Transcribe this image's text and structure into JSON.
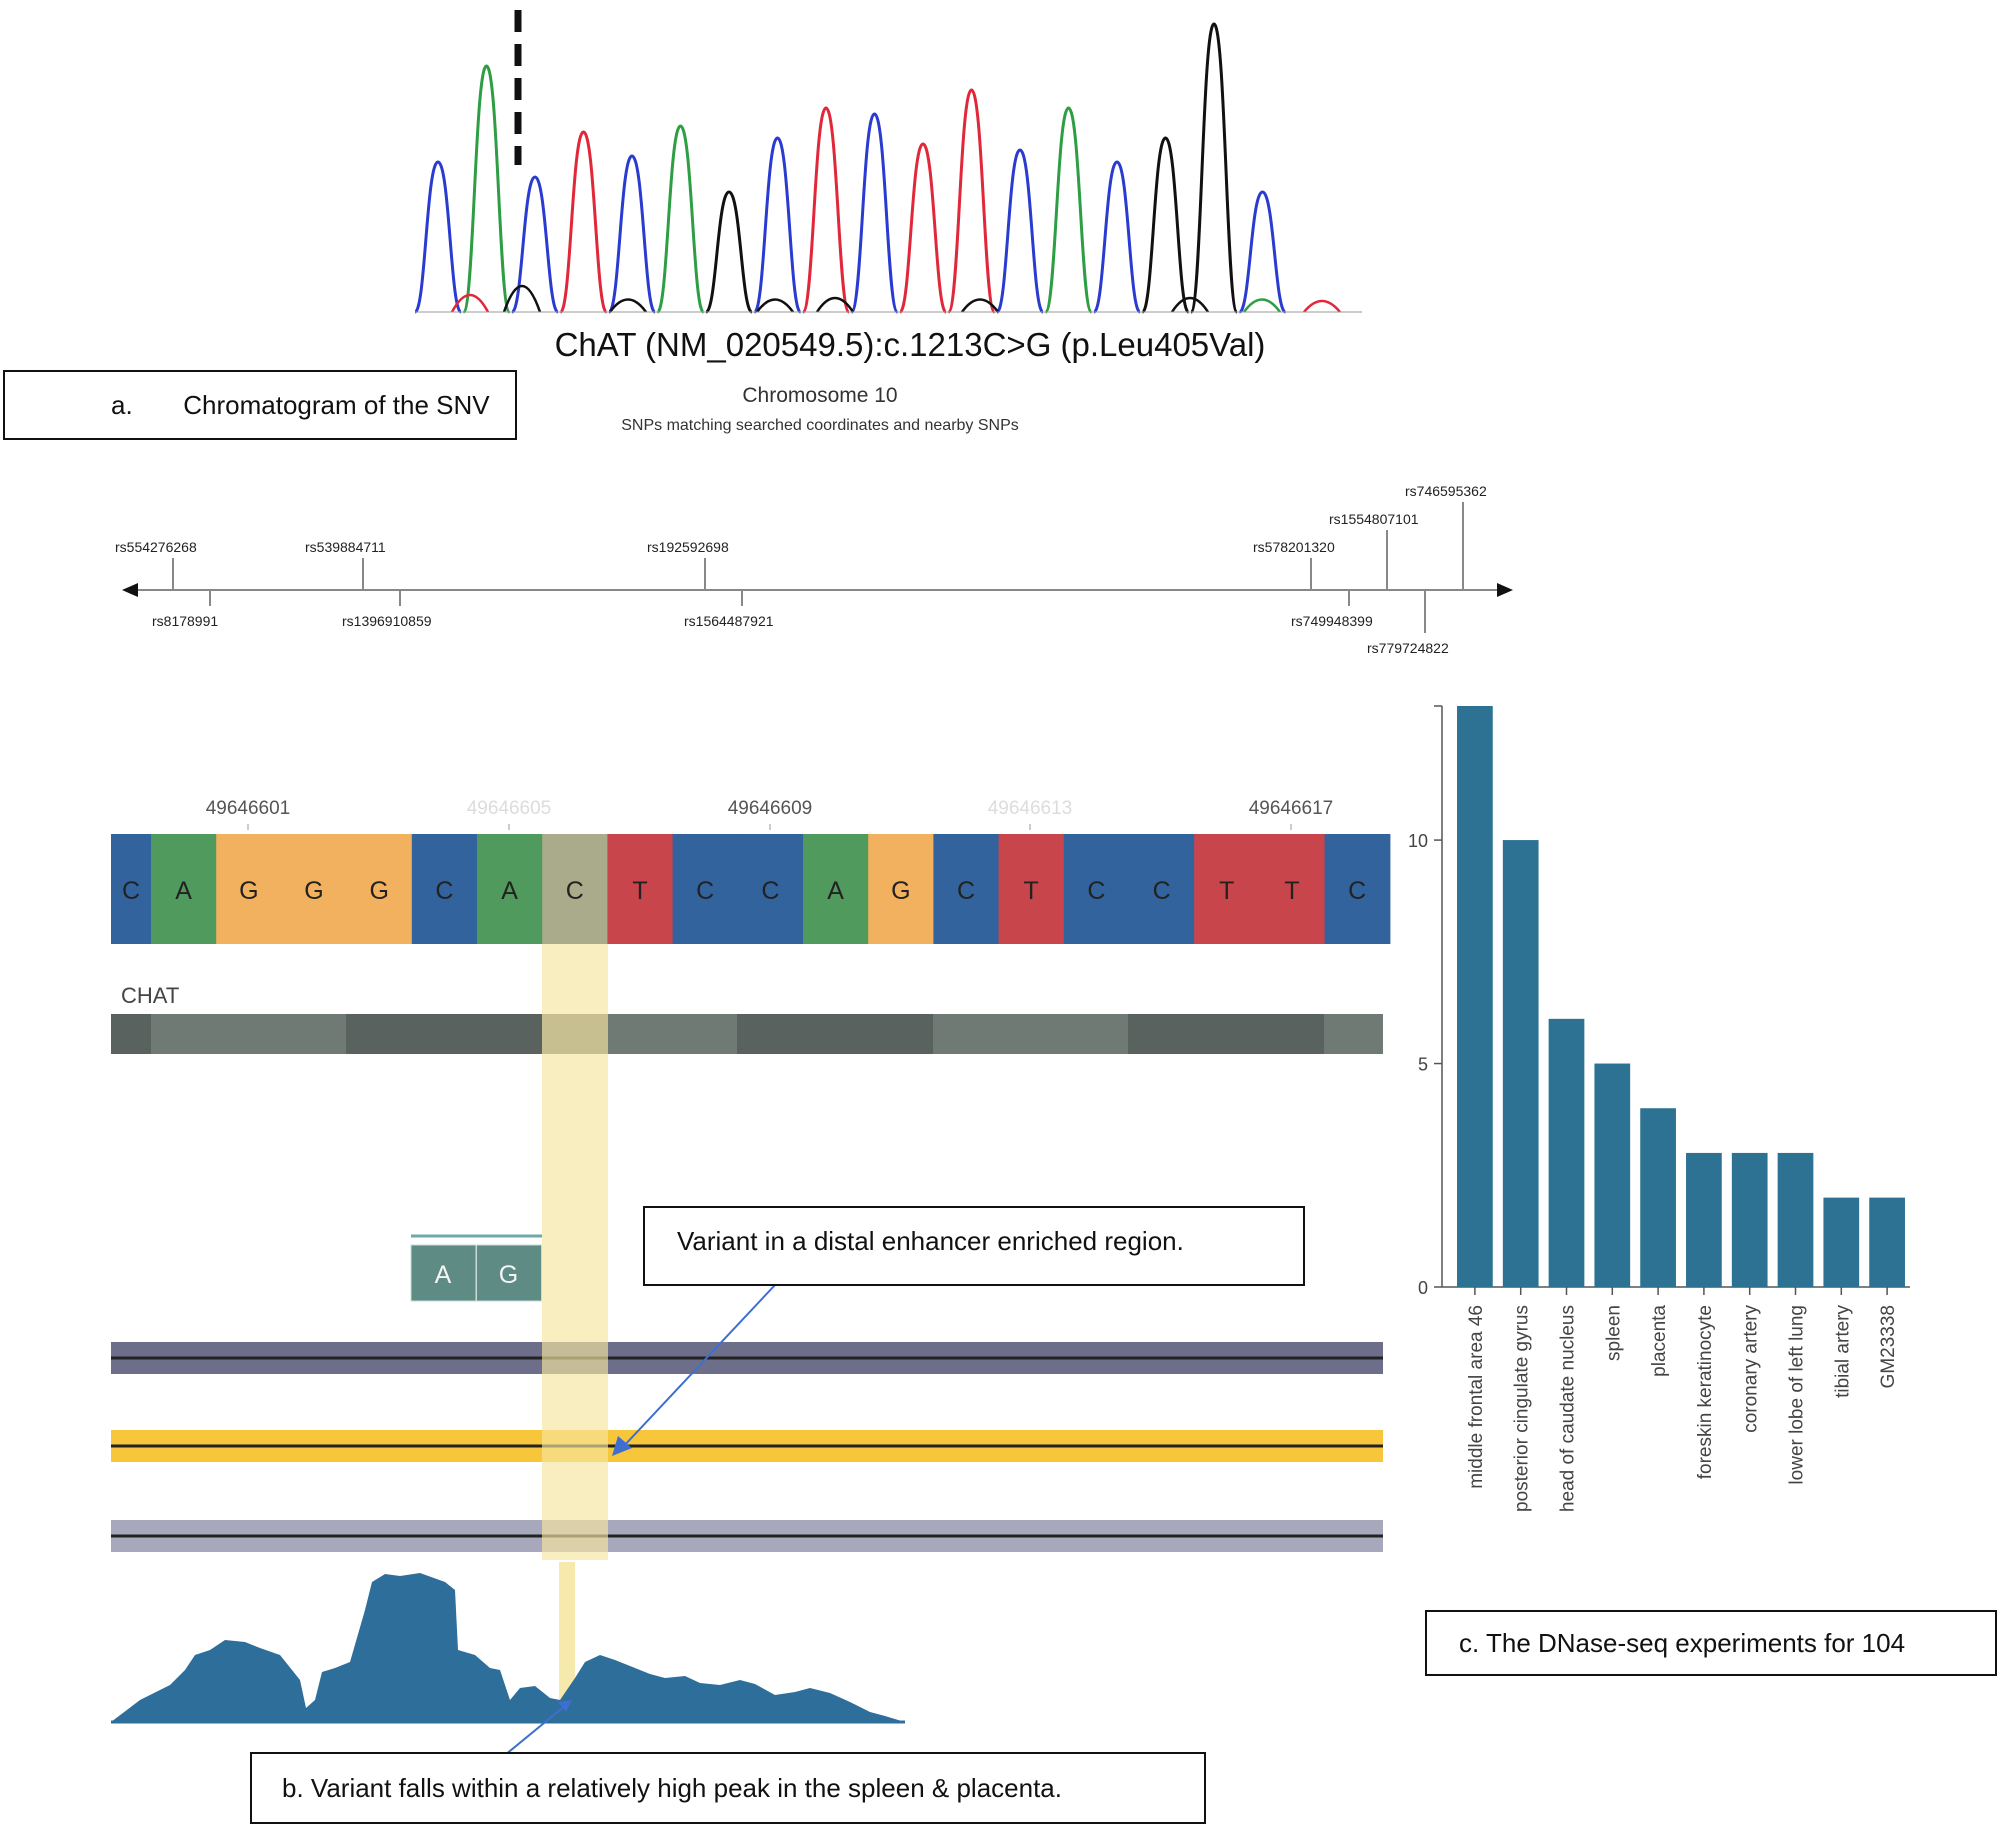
{
  "chromatogram": {
    "caption": "ChAT (NM_020549.5):c.1213C>G (p.Leu405Val)",
    "peaks": [
      {
        "base": "C",
        "height": 0.5
      },
      {
        "base": "A",
        "height": 0.82
      },
      {
        "base": "C",
        "height": 0.45
      },
      {
        "base": "T",
        "height": 0.6
      },
      {
        "base": "C",
        "height": 0.52
      },
      {
        "base": "A",
        "height": 0.62
      },
      {
        "base": "G",
        "height": 0.4
      },
      {
        "base": "C",
        "height": 0.58
      },
      {
        "base": "T",
        "height": 0.68
      },
      {
        "base": "C",
        "height": 0.66
      },
      {
        "base": "T",
        "height": 0.56
      },
      {
        "base": "T",
        "height": 0.74
      },
      {
        "base": "C",
        "height": 0.54
      },
      {
        "base": "A",
        "height": 0.68
      },
      {
        "base": "C",
        "height": 0.5
      },
      {
        "base": "G",
        "height": 0.58
      },
      {
        "base": "G",
        "height": 0.96
      },
      {
        "base": "C",
        "height": 0.4
      }
    ],
    "colors": {
      "A": "#2e9e44",
      "C": "#2a3bd0",
      "G": "#111111",
      "T": "#e0283a"
    }
  },
  "labels": {
    "a": "a.       Chromatogram of the SNV",
    "b": "b. Variant falls within a relatively high peak in the spleen & placenta.",
    "c": "c. The DNase-seq experiments for 104",
    "enhancer": "Variant in a distal enhancer enriched region."
  },
  "snp_map": {
    "title": "Chromosome 10",
    "subtitle": "SNPs matching searched coordinates and nearby SNPs",
    "above": [
      "rs554276268",
      "rs539884711",
      "rs192592698",
      "rs578201320",
      "rs1554807101",
      "rs746595362"
    ],
    "below": [
      "rs8178991",
      "rs1396910859",
      "rs1564487921",
      "rs749948399",
      "rs779724822"
    ]
  },
  "genome": {
    "coord_labels": [
      "49646601",
      "49646605",
      "49646609",
      "49646613",
      "49646617"
    ],
    "sequence": [
      "C",
      "A",
      "G",
      "G",
      "G",
      "C",
      "A",
      "C",
      "T",
      "C",
      "C",
      "A",
      "G",
      "C",
      "T",
      "C",
      "C",
      "T",
      "T",
      "C"
    ],
    "highlight_index": 7,
    "gene": "CHAT",
    "variant_bases": [
      "A",
      "G"
    ],
    "base_colors": {
      "A": "#4f9a5c",
      "C": "#33639d",
      "G": "#f2b15e",
      "T": "#c8454c",
      "highlight": "#a9ab8a"
    }
  },
  "chart_data": {
    "type": "bar",
    "title": "The DNase-seq experiments for 104",
    "categories": [
      "middle frontal area 46",
      "posterior cingulate gyrus",
      "head of caudate nucleus",
      "spleen",
      "placenta",
      "foreskin keratinocyte",
      "coronary artery",
      "lower lobe of left lung",
      "tibial artery",
      "GM23338"
    ],
    "values": [
      13,
      10,
      6,
      5,
      4,
      3,
      3,
      3,
      2,
      2
    ],
    "yticks": [
      "0",
      "5",
      "10"
    ],
    "ylim": [
      0,
      13
    ],
    "color": "#2d7292"
  }
}
